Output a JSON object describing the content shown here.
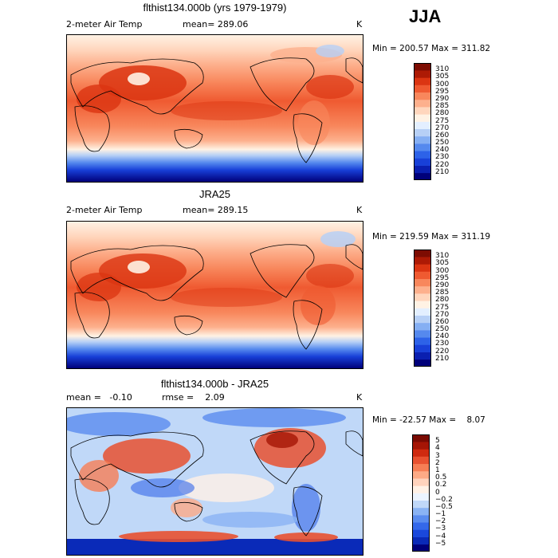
{
  "season": "JJA",
  "panels": [
    {
      "title": "flthist134.000b (yrs 1979-1979)",
      "left_label": "2-meter Air Temp",
      "mean_label": "mean= 289.06",
      "units": "K",
      "minmax": "Min = 200.57 Max = 311.82"
    },
    {
      "title": "JRA25",
      "left_label": "2-meter Air Temp",
      "mean_label": "mean= 289.15",
      "units": "K",
      "minmax": "Min = 219.59 Max = 311.19"
    },
    {
      "title": "flthist134.000b - JRA25",
      "left_label": "mean =   -0.10",
      "mean_label": "rmse =    2.09",
      "units": "K",
      "minmax": "Min = -22.57 Max =    8.07"
    }
  ],
  "chart_data": [
    {
      "type": "heatmap",
      "title": "flthist134.000b (yrs 1979-1979)",
      "variable": "2-meter Air Temp",
      "units": "K",
      "mean": 289.06,
      "min": 200.57,
      "max": 311.82,
      "colorbar_levels": [
        "210",
        "220",
        "230",
        "240",
        "250",
        "260",
        "270",
        "275",
        "280",
        "285",
        "290",
        "295",
        "300",
        "305",
        "310"
      ],
      "colorbar_colors": [
        "#00007a",
        "#0a1fb0",
        "#1840d8",
        "#2d62e8",
        "#5589ee",
        "#85aff3",
        "#b7d0f6",
        "#e3efff",
        "#fff2e4",
        "#ffd6bd",
        "#fdb08d",
        "#f8875c",
        "#ef5a31",
        "#db3512",
        "#ad1a05",
        "#7d0c02"
      ]
    },
    {
      "type": "heatmap",
      "title": "JRA25",
      "variable": "2-meter Air Temp",
      "units": "K",
      "mean": 289.15,
      "min": 219.59,
      "max": 311.19,
      "colorbar_levels": [
        "210",
        "220",
        "230",
        "240",
        "250",
        "260",
        "270",
        "275",
        "280",
        "285",
        "290",
        "295",
        "300",
        "305",
        "310"
      ],
      "colorbar_colors": [
        "#00007a",
        "#0a1fb0",
        "#1840d8",
        "#2d62e8",
        "#5589ee",
        "#85aff3",
        "#b7d0f6",
        "#e3efff",
        "#fff2e4",
        "#ffd6bd",
        "#fdb08d",
        "#f8875c",
        "#ef5a31",
        "#db3512",
        "#ad1a05",
        "#7d0c02"
      ]
    },
    {
      "type": "heatmap",
      "title": "flthist134.000b - JRA25",
      "units": "K",
      "mean": -0.1,
      "rmse": 2.09,
      "min": -22.57,
      "max": 8.07,
      "colorbar_levels": [
        "−5",
        "−4",
        "−3",
        "−2",
        "−1",
        "−0.5",
        "−0.2",
        "0",
        "0.2",
        "0.5",
        "1",
        "2",
        "3",
        "4",
        "5"
      ],
      "colorbar_colors": [
        "#00007a",
        "#0a2ab8",
        "#1a48dc",
        "#3468ea",
        "#5a8cef",
        "#8ab3f4",
        "#c0d8f8",
        "#ecf4ff",
        "#fff1e6",
        "#ffd3bd",
        "#fdaa86",
        "#f67e55",
        "#e85130",
        "#cf2a10",
        "#a51505",
        "#7a0a02"
      ]
    }
  ]
}
